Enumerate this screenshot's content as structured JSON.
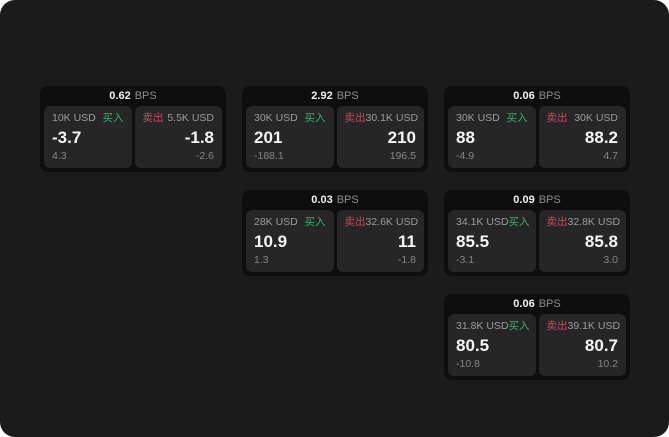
{
  "labels": {
    "buy": "买入",
    "sell": "卖出",
    "bps_unit": "BPS"
  },
  "colors": {
    "app_background": "#1b1b1c",
    "card_background": "#0e0e0f",
    "panel_background": "#262627",
    "buy_green": "#3dae6d",
    "sell_red": "#c74a5e",
    "price_white": "#f5f5f6",
    "muted_gray": "#8e8e92"
  },
  "cards": [
    {
      "bps": "0.62",
      "buy": {
        "notional": "10K USD",
        "price": "-3.7",
        "change": "4.3"
      },
      "sell": {
        "notional": "5.5K USD",
        "price": "-1.8",
        "change": "-2.6"
      }
    },
    {
      "bps": "2.92",
      "buy": {
        "notional": "30K USD",
        "price": "201",
        "change": "-188.1"
      },
      "sell": {
        "notional": "30.1K USD",
        "price": "210",
        "change": "196.5"
      }
    },
    {
      "bps": "0.06",
      "buy": {
        "notional": "30K USD",
        "price": "88",
        "change": "-4.9"
      },
      "sell": {
        "notional": "30K USD",
        "price": "88.2",
        "change": "4.7"
      }
    },
    {
      "bps": "0.03",
      "buy": {
        "notional": "28K USD",
        "price": "10.9",
        "change": "1.3"
      },
      "sell": {
        "notional": "32.6K USD",
        "price": "11",
        "change": "-1.8"
      }
    },
    {
      "bps": "0.09",
      "buy": {
        "notional": "34.1K USD",
        "price": "85.5",
        "change": "-3.1"
      },
      "sell": {
        "notional": "32.8K USD",
        "price": "85.8",
        "change": "3.0"
      }
    },
    {
      "bps": "0.06",
      "buy": {
        "notional": "31.8K USD",
        "price": "80.5",
        "change": "-10.8"
      },
      "sell": {
        "notional": "39.1K USD",
        "price": "80.7",
        "change": "10.2"
      }
    }
  ]
}
